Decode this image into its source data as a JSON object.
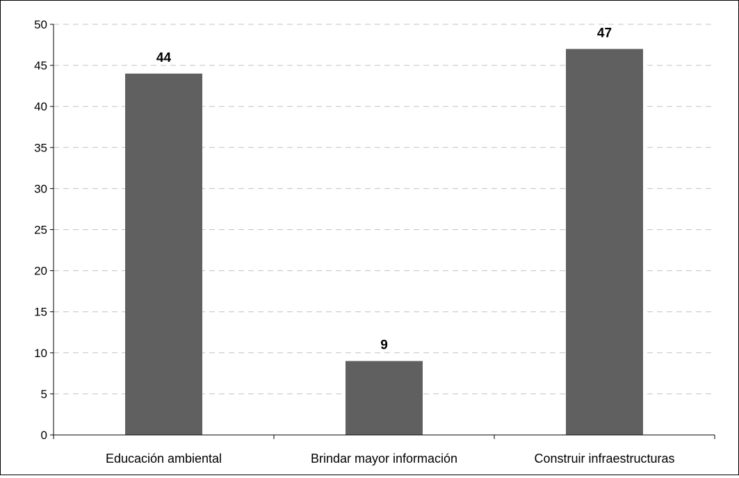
{
  "chart_data": {
    "type": "bar",
    "title": "",
    "xlabel": "",
    "ylabel": "",
    "categories": [
      "Educación ambiental",
      "Brindar mayor información",
      "Construir infraestructuras"
    ],
    "values": [
      44,
      9,
      47
    ],
    "data_labels": [
      "44",
      "9",
      "47"
    ],
    "ylim": [
      0,
      50
    ],
    "yticks": [
      "0",
      "5",
      "10",
      "15",
      "20",
      "25",
      "30",
      "35",
      "40",
      "45",
      "50"
    ],
    "grid": true,
    "grid_style": "dashed",
    "legend": "none",
    "colors": {
      "bar": "#606060",
      "grid": "#c0c0c0",
      "axis": "#000000",
      "text": "#000000"
    }
  }
}
